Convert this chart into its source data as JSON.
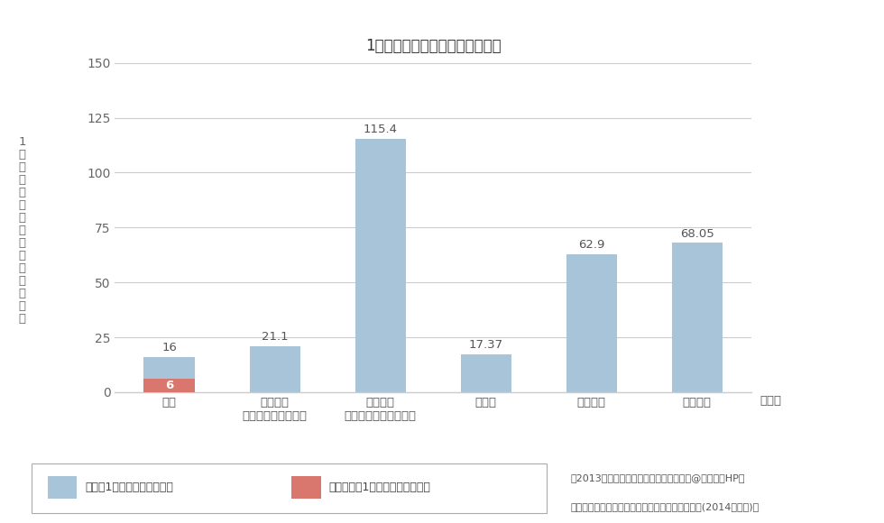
{
  "title": "1軒あたりの停電時間の国際比較",
  "ylabel": "1\n軒\nあ\nた\nり\nの\n停\n電\n時\n間\n（\n分\n／\n年\n）",
  "xlabel_label": "（国）",
  "categories": [
    "日本",
    "アメリカ\n（ニューヨーク州）",
    "アメリカ\n（カリフォルニア州）",
    "ドイツ",
    "フランス",
    "イギリス"
  ],
  "values": [
    16,
    21.1,
    115.4,
    17.37,
    62.9,
    68.05
  ],
  "tokyo_value": 6,
  "bar_color": "#a8c4d8",
  "tokyo_color": "#d9776e",
  "ylim": [
    0,
    150
  ],
  "yticks": [
    0,
    25,
    50,
    75,
    100,
    125,
    150
  ],
  "value_labels": [
    "16",
    "21.1",
    "115.4",
    "17.37",
    "62.9",
    "68.05"
  ],
  "tokyo_label": "6",
  "legend_label1": "各国の1軒あたりの停電時間",
  "legend_label2": "東京電力の1軒あたりの停電時間",
  "note1": "「2013年実績値（電気事業連合会調べ）@東京電力HP」",
  "note2": "「出典：海外電力調査会編「海外電気事業統計」(2014年度版)」",
  "background_color": "#ffffff",
  "grid_color": "#cccccc",
  "title_fontsize": 12,
  "label_fontsize": 9.5,
  "tick_fontsize": 10,
  "note_fontsize": 8.0,
  "ylabel_fontsize": 9.5
}
